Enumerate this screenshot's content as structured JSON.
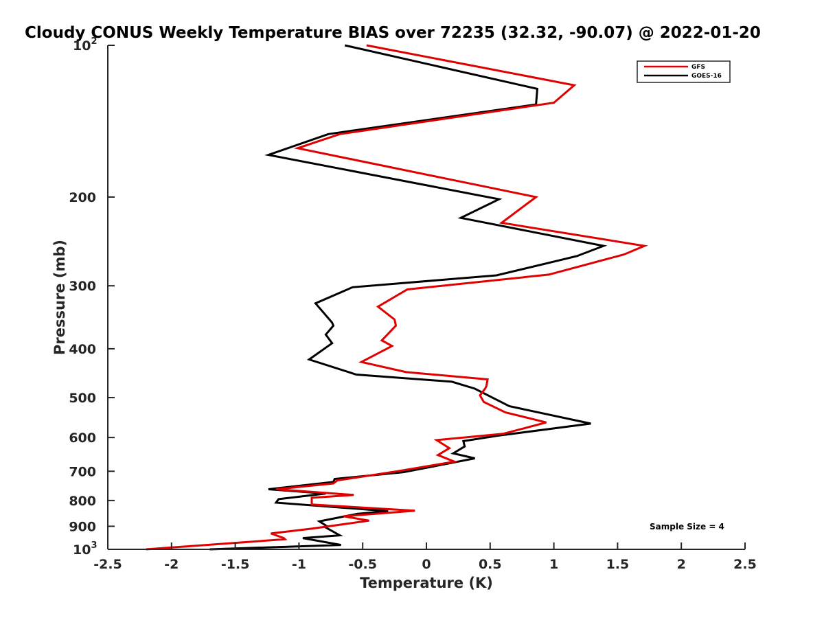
{
  "chart_data": {
    "type": "line",
    "title": "Cloudy CONUS Weekly Temperature BIAS over 72235 (32.32, -90.07) @ 2022-01-20",
    "xlabel": "Temperature (K)",
    "ylabel": "Pressure (mb)",
    "xlim": [
      -2.5,
      2.5
    ],
    "ylim": [
      100,
      1000
    ],
    "y_scale": "log",
    "y_reversed": true,
    "grid": false,
    "legend_position": "top-right",
    "x_ticks": [
      "-2.5",
      "-2",
      "-1.5",
      "-1",
      "-0.5",
      "0",
      "0.5",
      "1",
      "1.5",
      "2",
      "2.5"
    ],
    "y_ticks": [
      {
        "value": 100,
        "base": "10",
        "exp": "2"
      },
      {
        "value": 200,
        "label": "200"
      },
      {
        "value": 300,
        "label": "300"
      },
      {
        "value": 400,
        "label": "400"
      },
      {
        "value": 500,
        "label": "500"
      },
      {
        "value": 600,
        "label": "600"
      },
      {
        "value": 700,
        "label": "700"
      },
      {
        "value": 800,
        "label": "800"
      },
      {
        "value": 900,
        "label": "900"
      },
      {
        "value": 1000,
        "base": "10",
        "exp": "3"
      }
    ],
    "series": [
      {
        "name": "GFS",
        "color": "#e00000",
        "points": [
          [
            -0.47,
            100
          ],
          [
            1.16,
            120
          ],
          [
            1.0,
            130
          ],
          [
            -0.68,
            150
          ],
          [
            -1.01,
            160
          ],
          [
            0.86,
            200
          ],
          [
            0.59,
            225
          ],
          [
            1.71,
            250
          ],
          [
            1.55,
            260
          ],
          [
            0.96,
            285
          ],
          [
            -0.15,
            305
          ],
          [
            -0.38,
            330
          ],
          [
            -0.25,
            350
          ],
          [
            -0.24,
            360
          ],
          [
            -0.35,
            385
          ],
          [
            -0.27,
            395
          ],
          [
            -0.51,
            425
          ],
          [
            -0.16,
            445
          ],
          [
            0.48,
            460
          ],
          [
            0.47,
            475
          ],
          [
            0.46,
            480
          ],
          [
            0.42,
            495
          ],
          [
            0.45,
            510
          ],
          [
            0.62,
            535
          ],
          [
            0.94,
            560
          ],
          [
            0.6,
            590
          ],
          [
            0.08,
            607
          ],
          [
            0.18,
            630
          ],
          [
            0.09,
            650
          ],
          [
            0.22,
            670
          ],
          [
            -0.23,
            700
          ],
          [
            -0.7,
            730
          ],
          [
            -0.73,
            740
          ],
          [
            -1.18,
            760
          ],
          [
            -0.57,
            780
          ],
          [
            -0.9,
            790
          ],
          [
            -0.9,
            815
          ],
          [
            -0.09,
            838
          ],
          [
            -0.65,
            860
          ],
          [
            -0.45,
            877
          ],
          [
            -0.9,
            910
          ],
          [
            -1.22,
            930
          ],
          [
            -1.12,
            950
          ],
          [
            -1.11,
            955
          ],
          [
            -2.2,
            1000
          ]
        ]
      },
      {
        "name": "GOES-16",
        "color": "#000000",
        "points": [
          [
            -0.64,
            100
          ],
          [
            0.87,
            122
          ],
          [
            0.86,
            131
          ],
          [
            -0.77,
            150
          ],
          [
            -1.24,
            165
          ],
          [
            0.57,
            202
          ],
          [
            0.27,
            220
          ],
          [
            1.39,
            250
          ],
          [
            1.18,
            262
          ],
          [
            0.55,
            286
          ],
          [
            -0.58,
            302
          ],
          [
            -0.87,
            325
          ],
          [
            -0.74,
            355
          ],
          [
            -0.73,
            360
          ],
          [
            -0.79,
            375
          ],
          [
            -0.74,
            390
          ],
          [
            -0.92,
            420
          ],
          [
            -0.55,
            450
          ],
          [
            0.2,
            465
          ],
          [
            0.38,
            480
          ],
          [
            0.65,
            520
          ],
          [
            1.29,
            563
          ],
          [
            0.56,
            595
          ],
          [
            0.29,
            610
          ],
          [
            0.3,
            625
          ],
          [
            0.21,
            645
          ],
          [
            0.38,
            660
          ],
          [
            -0.18,
            703
          ],
          [
            -0.72,
            725
          ],
          [
            -0.73,
            735
          ],
          [
            -1.24,
            760
          ],
          [
            -0.79,
            775
          ],
          [
            -1.16,
            795
          ],
          [
            -1.18,
            808
          ],
          [
            -0.3,
            840
          ],
          [
            -0.54,
            850
          ],
          [
            -0.84,
            880
          ],
          [
            -0.78,
            900
          ],
          [
            -0.79,
            905
          ],
          [
            -0.68,
            938
          ],
          [
            -0.97,
            950
          ],
          [
            -0.67,
            980
          ],
          [
            -1.7,
            1000
          ]
        ]
      }
    ],
    "annotations": [
      {
        "text": "Sample Size = 4",
        "position": "bottom-right"
      }
    ]
  }
}
